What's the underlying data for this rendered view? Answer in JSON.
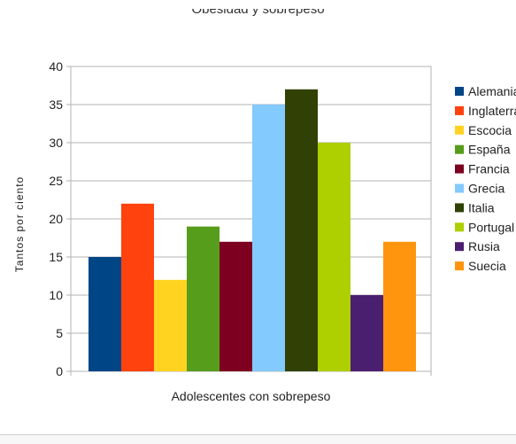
{
  "chart_data": {
    "type": "bar",
    "title": "Obesidad y sobrepeso",
    "xlabel": "Adolescentes con sobrepeso",
    "ylabel": "Tantos por ciento",
    "ylim": [
      0,
      40
    ],
    "yticks": [
      0,
      5,
      10,
      15,
      20,
      25,
      30,
      35,
      40
    ],
    "grid": true,
    "legend_position": "right",
    "categories": [
      "Adolescentes con sobrepeso"
    ],
    "series": [
      {
        "name": "Alemania",
        "values": [
          15
        ],
        "color": "#004586"
      },
      {
        "name": "Inglaterra",
        "values": [
          22
        ],
        "color": "#ff420e"
      },
      {
        "name": "Escocia",
        "values": [
          12
        ],
        "color": "#ffd320"
      },
      {
        "name": "España",
        "values": [
          19
        ],
        "color": "#579d1c"
      },
      {
        "name": "Francia",
        "values": [
          17
        ],
        "color": "#7e0021"
      },
      {
        "name": "Grecia",
        "values": [
          35
        ],
        "color": "#83caff"
      },
      {
        "name": "Italia",
        "values": [
          37
        ],
        "color": "#314004"
      },
      {
        "name": "Portugal",
        "values": [
          30
        ],
        "color": "#aecf00"
      },
      {
        "name": "Rusia",
        "values": [
          10
        ],
        "color": "#4b1f6f"
      },
      {
        "name": "Suecia",
        "values": [
          17
        ],
        "color": "#ff950e"
      }
    ]
  }
}
